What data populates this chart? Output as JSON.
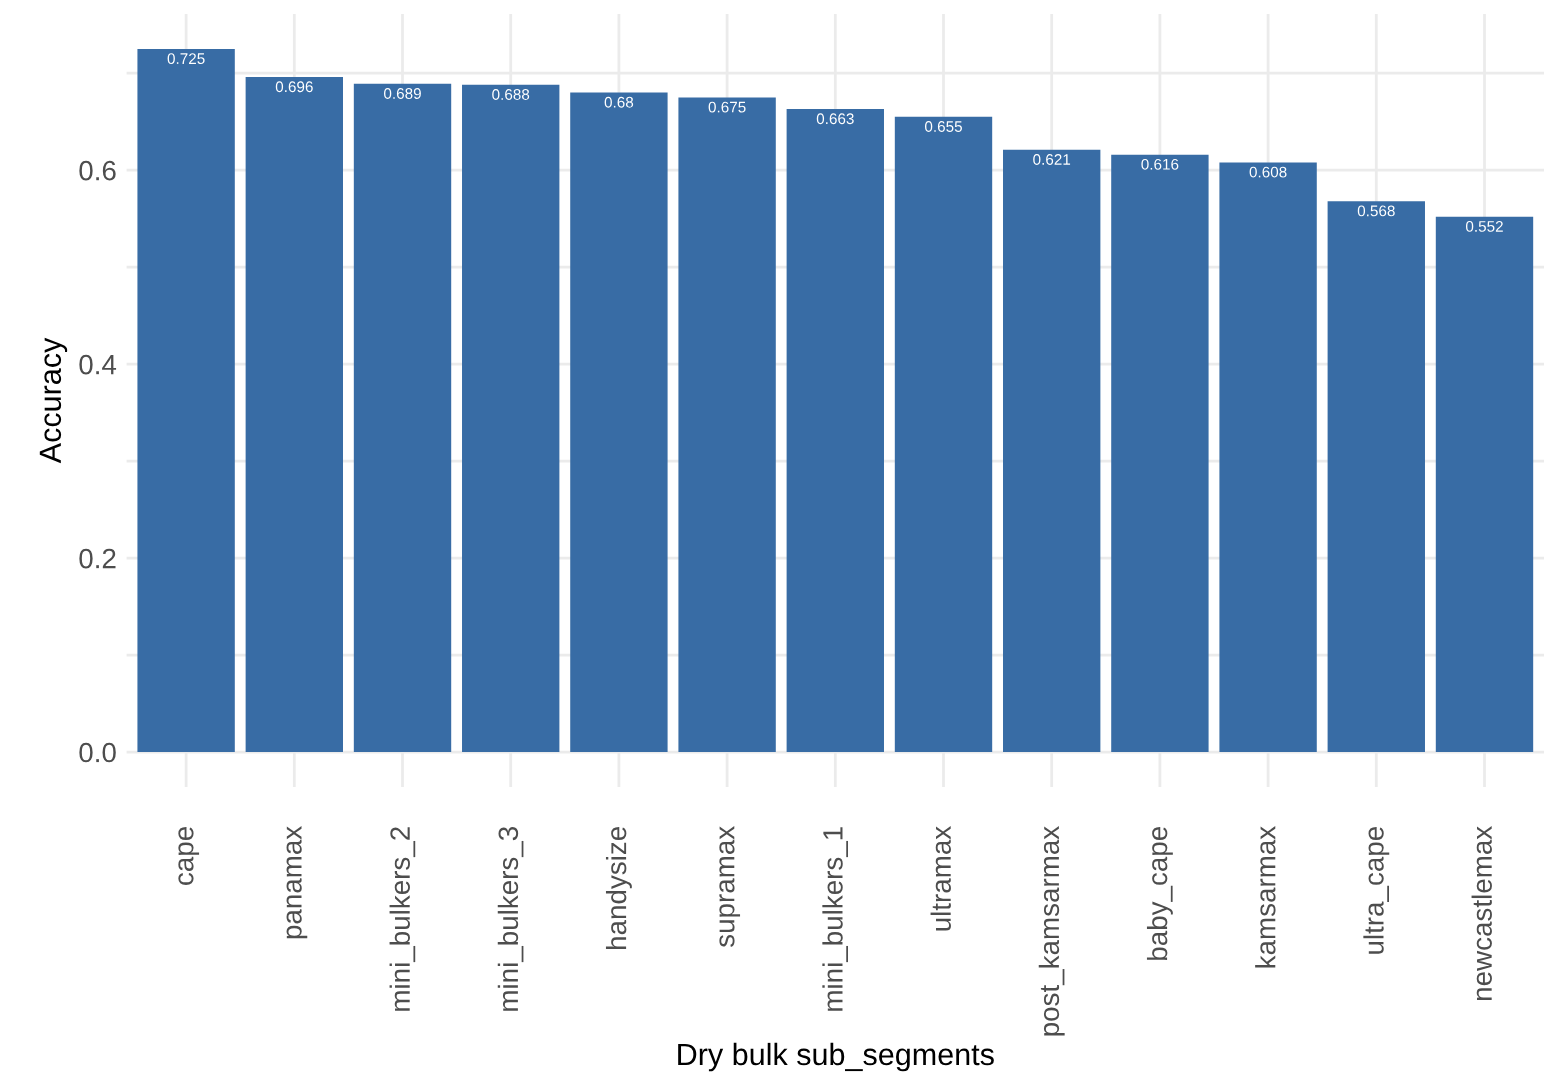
{
  "chart_data": {
    "type": "bar",
    "xlabel": "Dry bulk sub_segments",
    "ylabel": "Accuracy",
    "categories": [
      "cape",
      "panamax",
      "mini_bulkers_2",
      "mini_bulkers_3",
      "handysize",
      "supramax",
      "mini_bulkers_1",
      "ultramax",
      "post_kamsarmax",
      "baby_cape",
      "kamsarmax",
      "ultra_cape",
      "newcastlemax"
    ],
    "values": [
      0.725,
      0.696,
      0.689,
      0.688,
      0.68,
      0.675,
      0.663,
      0.655,
      0.621,
      0.616,
      0.608,
      0.568,
      0.552
    ],
    "color": "#386ca5",
    "data_labels": true,
    "grid": true,
    "legend": false,
    "ylim": [
      -0.036,
      0.761
    ],
    "yticks": [
      {
        "value": 0,
        "label": "0.0"
      },
      {
        "value": 0.1,
        "label": null
      },
      {
        "value": 0.2,
        "label": "0.2"
      },
      {
        "value": 0.3,
        "label": null
      },
      {
        "value": 0.4,
        "label": "0.4"
      },
      {
        "value": 0.5,
        "label": null
      },
      {
        "value": 0.6,
        "label": "0.6"
      },
      {
        "value": 0.7,
        "label": null
      }
    ]
  }
}
